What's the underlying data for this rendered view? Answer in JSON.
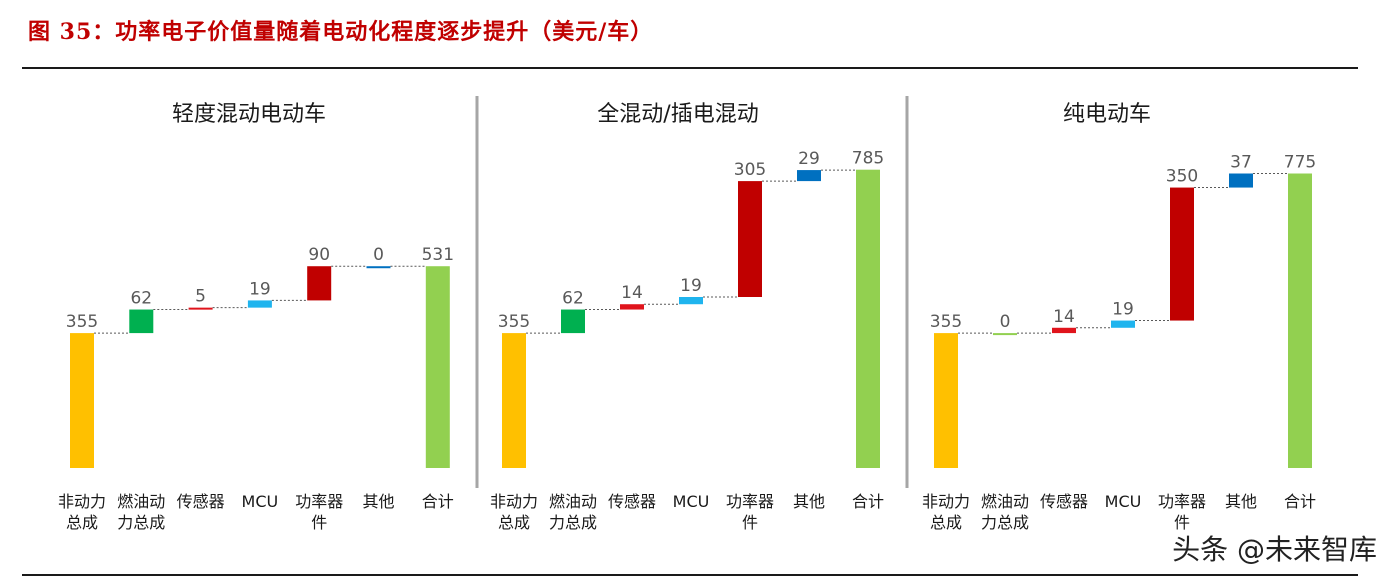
{
  "figure_title": "图 35：功率电子价值量随着电动化程度逐步提升（美元/车）",
  "watermark": "头条 @未来智库",
  "colors": {
    "title": "#c00000",
    "orange": "#ffc000",
    "green": "#00b050",
    "red": "#e0141c",
    "cyan": "#1fb4ee",
    "darkred": "#c00000",
    "blue": "#0070c0",
    "lightgreen": "#92d050"
  },
  "chart_data": [
    {
      "type": "waterfall",
      "title": "轻度混动电动车",
      "categories": [
        "非动力总成",
        "燃油动力总成",
        "传感器",
        "MCU",
        "功率器件",
        "其他",
        "合计"
      ],
      "values": [
        355,
        62,
        5,
        19,
        90,
        0,
        531
      ],
      "kinds": [
        "base",
        "delta",
        "delta",
        "delta",
        "delta",
        "delta",
        "total"
      ],
      "bar_colors": [
        "orange",
        "green",
        "red",
        "cyan",
        "darkred",
        "blue",
        "lightgreen"
      ]
    },
    {
      "type": "waterfall",
      "title": "全混动/插电混动",
      "categories": [
        "非动力总成",
        "燃油动力总成",
        "传感器",
        "MCU",
        "功率器件",
        "其他",
        "合计"
      ],
      "values": [
        355,
        62,
        14,
        19,
        305,
        29,
        785
      ],
      "kinds": [
        "base",
        "delta",
        "delta",
        "delta",
        "delta",
        "delta",
        "total"
      ],
      "bar_colors": [
        "orange",
        "green",
        "red",
        "cyan",
        "darkred",
        "blue",
        "lightgreen"
      ]
    },
    {
      "type": "waterfall",
      "title": "纯电动车",
      "categories": [
        "非动力总成",
        "燃油动力总成",
        "传感器",
        "MCU",
        "功率器件",
        "其他",
        "合计"
      ],
      "values": [
        355,
        0,
        14,
        19,
        350,
        37,
        775
      ],
      "kinds": [
        "base",
        "delta",
        "delta",
        "delta",
        "delta",
        "delta",
        "total"
      ],
      "bar_colors": [
        "orange",
        "lightgreen",
        "red",
        "cyan",
        "darkred",
        "blue",
        "lightgreen"
      ]
    }
  ]
}
